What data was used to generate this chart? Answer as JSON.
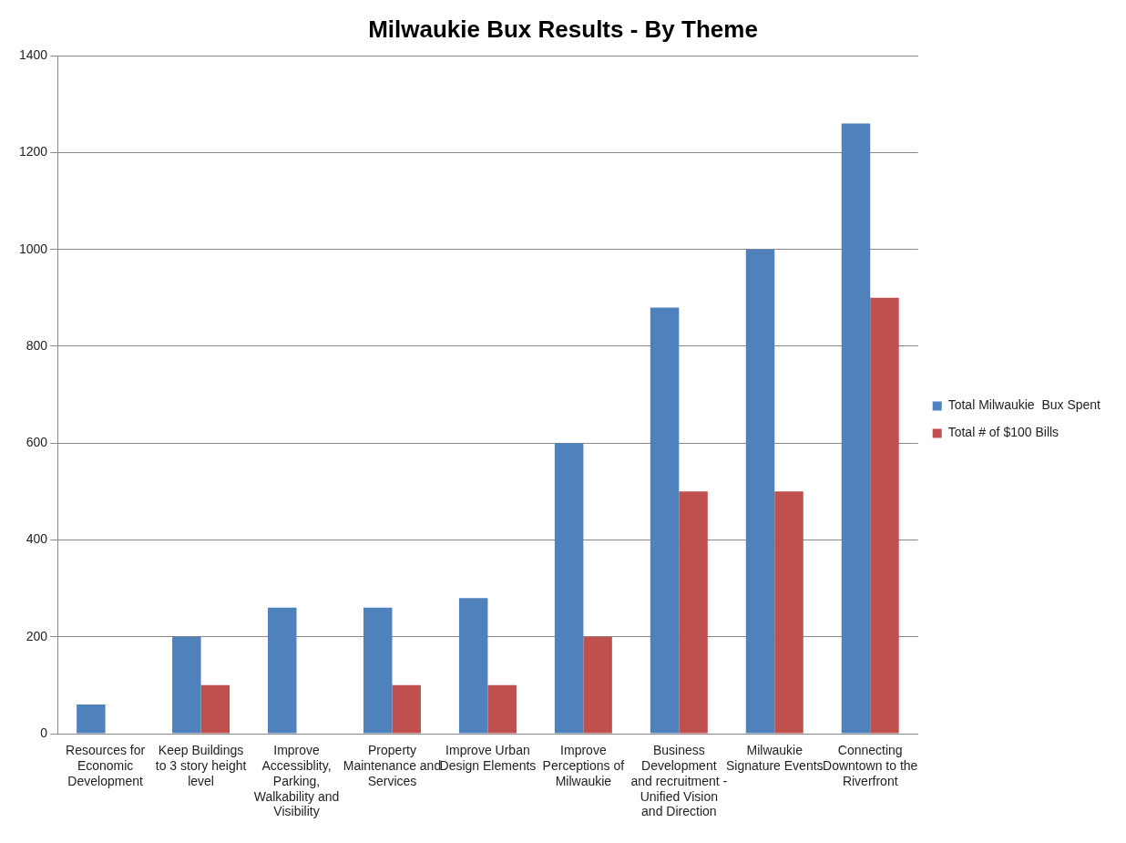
{
  "chart_data": {
    "type": "bar",
    "title": "Milwaukie Bux Results - By Theme",
    "categories": [
      "Resources for Economic Development",
      "Keep Buildings to 3 story height level",
      "Improve Accessiblity, Parking, Walkability and Visibility",
      "Property Maintenance and Services",
      "Improve Urban Design Elements",
      "Improve Perceptions of Milwaukie",
      "Business Development and recruitment - Unified Vision and Direction",
      "Milwaukie Signature Events",
      "Connecting Downtown to the Riverfront"
    ],
    "series": [
      {
        "name": "Total Milwaukie  Bux Spent",
        "color": "#4f81bd",
        "values": [
          60,
          200,
          260,
          260,
          280,
          600,
          880,
          1000,
          1260
        ]
      },
      {
        "name": "Total # of $100 Bills",
        "color": "#c0504d",
        "values": [
          null,
          100,
          null,
          100,
          100,
          200,
          500,
          500,
          900
        ]
      }
    ],
    "ylim": [
      0,
      1400
    ],
    "yticks": [
      0,
      200,
      400,
      600,
      800,
      1000,
      1200,
      1400
    ],
    "grid": "y",
    "legend": "right"
  }
}
